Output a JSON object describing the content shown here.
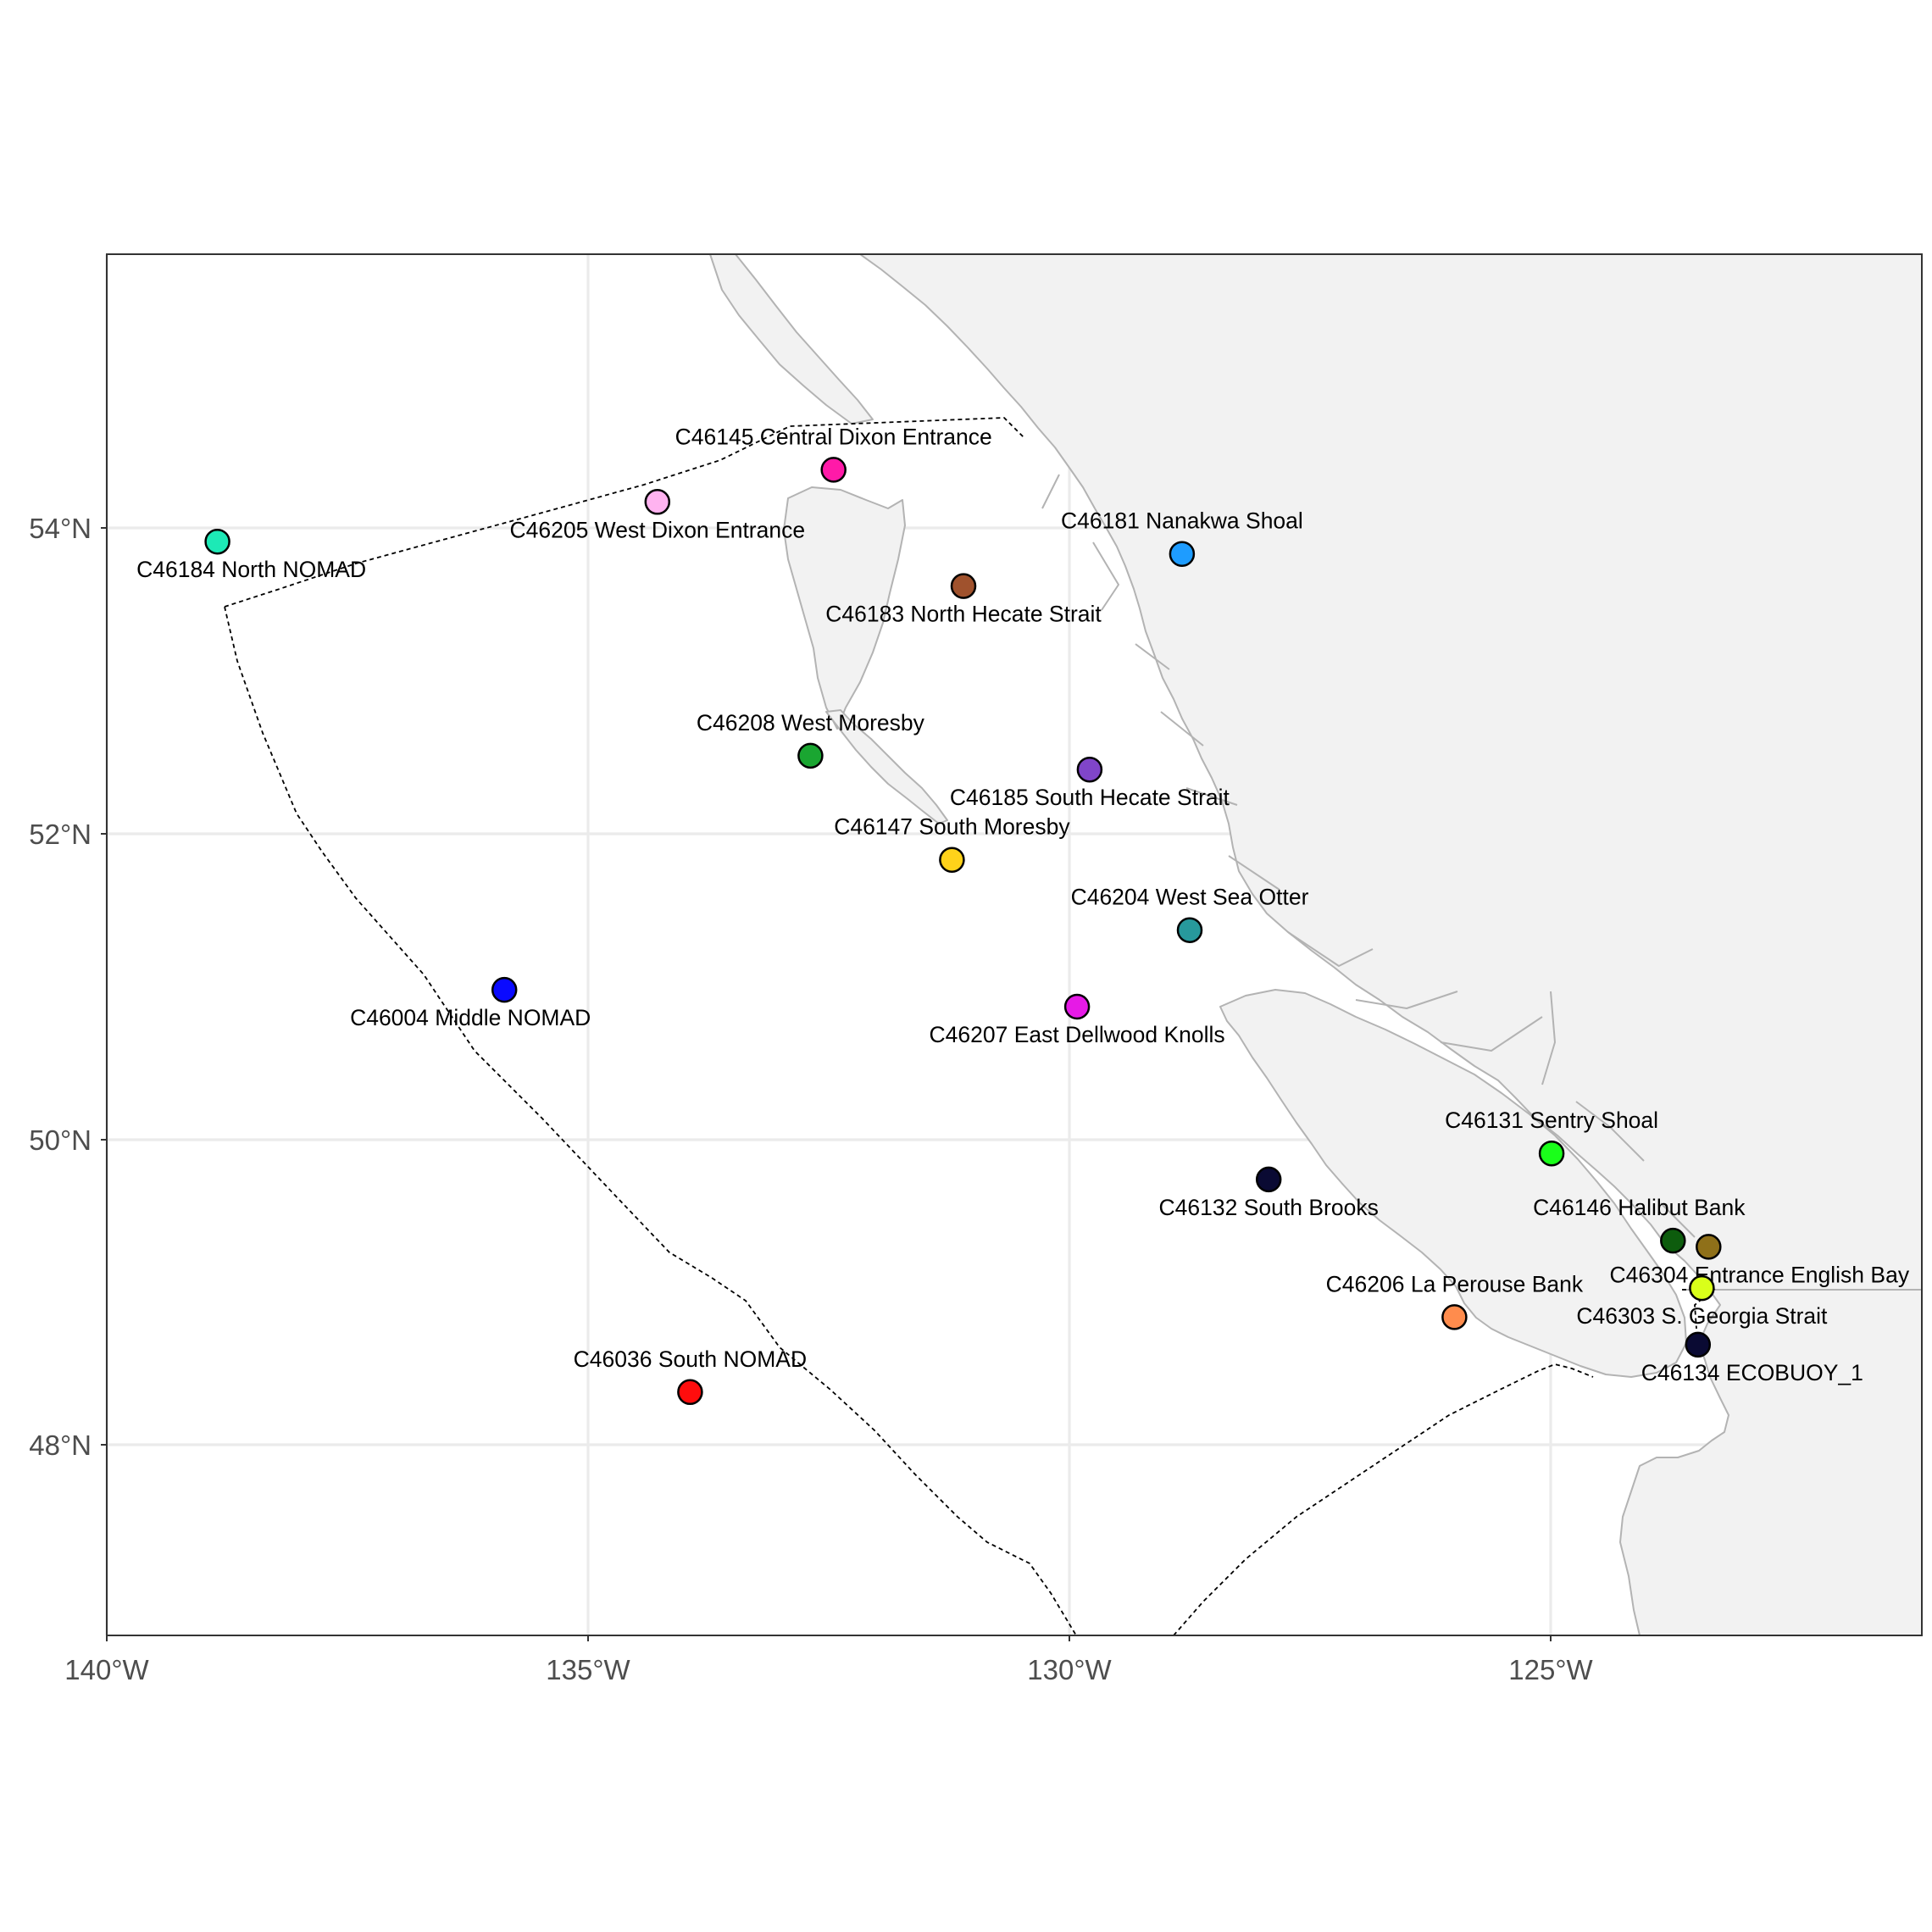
{
  "map": {
    "lon_range": [
      -140,
      -119.8
    ],
    "lat_range": [
      46.8,
      55.8
    ],
    "lon_ticks": [
      {
        "value": -140,
        "label": "140°W"
      },
      {
        "value": -135,
        "label": "135°W"
      },
      {
        "value": -130,
        "label": "130°W"
      },
      {
        "value": -125,
        "label": "125°W"
      }
    ],
    "lat_ticks": [
      {
        "value": 48,
        "label": "48°N"
      },
      {
        "value": 50,
        "label": "50°N"
      },
      {
        "value": 52,
        "label": "52°N"
      },
      {
        "value": 54,
        "label": "54°N"
      }
    ],
    "land_color": "#f2f2f2",
    "coast_color": "#b3b3b3",
    "boundary_style": "dashed black line",
    "grid": true
  },
  "stations": [
    {
      "id": "C46184",
      "label": "C46184 North NOMAD",
      "lon": -138.85,
      "lat": 53.91,
      "color": "#1de9b6",
      "label_side": "below"
    },
    {
      "id": "C46205",
      "label": "C46205 West Dixon Entrance",
      "lon": -134.28,
      "lat": 54.17,
      "color": "#ffb3f0",
      "label_side": "below"
    },
    {
      "id": "C46145",
      "label": "C46145 Central Dixon Entrance",
      "lon": -132.45,
      "lat": 54.38,
      "color": "#ff1aa8",
      "label_side": "above"
    },
    {
      "id": "C46181",
      "label": "C46181 Nanakwa Shoal",
      "lon": -128.83,
      "lat": 53.83,
      "color": "#1e9cff",
      "label_side": "above"
    },
    {
      "id": "C46183",
      "label": "C46183 North Hecate Strait",
      "lon": -131.1,
      "lat": 53.62,
      "color": "#a0522d",
      "label_side": "below"
    },
    {
      "id": "C46208",
      "label": "C46208 West Moresby",
      "lon": -132.69,
      "lat": 52.51,
      "color": "#1aa631",
      "label_side": "above"
    },
    {
      "id": "C46185",
      "label": "C46185 South Hecate Strait",
      "lon": -129.79,
      "lat": 52.42,
      "color": "#8045c9",
      "label_side": "below"
    },
    {
      "id": "C46147",
      "label": "C46147 South Moresby",
      "lon": -131.22,
      "lat": 51.83,
      "color": "#ffd21a",
      "label_side": "above"
    },
    {
      "id": "C46204",
      "label": "C46204 West Sea Otter",
      "lon": -128.75,
      "lat": 51.37,
      "color": "#27999c",
      "label_side": "above"
    },
    {
      "id": "C46004",
      "label": "C46004 Middle NOMAD",
      "lon": -135.87,
      "lat": 50.98,
      "color": "#0a0aff",
      "label_side": "below"
    },
    {
      "id": "C46207",
      "label": "C46207 East Dellwood Knolls",
      "lon": -129.92,
      "lat": 50.87,
      "color": "#e61ae6",
      "label_side": "below"
    },
    {
      "id": "C46131",
      "label": "C46131 Sentry Shoal",
      "lon": -124.99,
      "lat": 49.91,
      "color": "#1aff1a",
      "label_side": "above"
    },
    {
      "id": "C46132",
      "label": "C46132 South Brooks",
      "lon": -127.93,
      "lat": 49.74,
      "color": "#0a0a33",
      "label_side": "below"
    },
    {
      "id": "C46146",
      "label": "C46146 Halibut Bank",
      "lon": -123.73,
      "lat": 49.34,
      "color": "#0d5c0d",
      "label_side": "above"
    },
    {
      "id": "C46304",
      "label": "C46304 Entrance English Bay",
      "lon": -123.36,
      "lat": 49.3,
      "color": "#8f7019",
      "label_side": "below"
    },
    {
      "id": "C46303",
      "label": "C46303 S. Georgia Strait",
      "lon": -123.43,
      "lat": 49.03,
      "color": "#d9ff1a",
      "label_side": "below"
    },
    {
      "id": "C46206",
      "label": "C46206 La Perouse Bank",
      "lon": -126.0,
      "lat": 48.84,
      "color": "#ff8c4d",
      "label_side": "above"
    },
    {
      "id": "C46134",
      "label": "C46134 ECOBUOY_1",
      "lon": -123.47,
      "lat": 48.66,
      "color": "#0a0a33",
      "label_side": "below"
    },
    {
      "id": "C46036",
      "label": "C46036 South NOMAD",
      "lon": -133.94,
      "lat": 48.35,
      "color": "#ff0d0d",
      "label_side": "above"
    }
  ]
}
